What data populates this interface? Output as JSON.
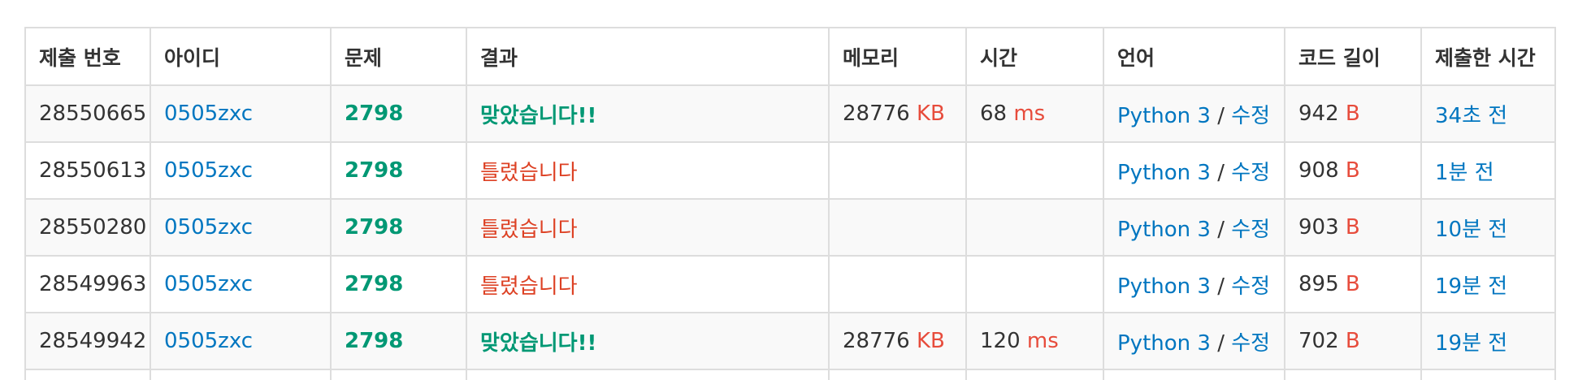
{
  "headers": {
    "submission_id": "제출 번호",
    "user_id": "아이디",
    "problem": "문제",
    "result": "결과",
    "memory": "메모리",
    "time": "시간",
    "language": "언어",
    "code_length": "코드 길이",
    "submitted_at": "제출한 시간"
  },
  "units": {
    "memory": "KB",
    "time": "ms",
    "code_length": "B"
  },
  "edit_label": "수정",
  "language_separator": "/",
  "colors": {
    "link_blue": "#0076c0",
    "accepted_green": "#009874",
    "wrong_red": "#dd4124",
    "unit_red": "#e74c3c",
    "border_gray": "#dddddd",
    "stripe_gray": "#f9f9f9"
  },
  "rows": [
    {
      "submission_id": "28550665",
      "user_id": "0505zxc",
      "problem": "2798",
      "result": "맞았습니다!!",
      "result_status": "accepted",
      "memory": "28776",
      "time": "68",
      "language": "Python 3",
      "code_length": "942",
      "submitted_at": "34초 전"
    },
    {
      "submission_id": "28550613",
      "user_id": "0505zxc",
      "problem": "2798",
      "result": "틀렸습니다",
      "result_status": "wrong",
      "memory": "",
      "time": "",
      "language": "Python 3",
      "code_length": "908",
      "submitted_at": "1분 전"
    },
    {
      "submission_id": "28550280",
      "user_id": "0505zxc",
      "problem": "2798",
      "result": "틀렸습니다",
      "result_status": "wrong",
      "memory": "",
      "time": "",
      "language": "Python 3",
      "code_length": "903",
      "submitted_at": "10분 전"
    },
    {
      "submission_id": "28549963",
      "user_id": "0505zxc",
      "problem": "2798",
      "result": "틀렸습니다",
      "result_status": "wrong",
      "memory": "",
      "time": "",
      "language": "Python 3",
      "code_length": "895",
      "submitted_at": "19분 전"
    },
    {
      "submission_id": "28549942",
      "user_id": "0505zxc",
      "problem": "2798",
      "result": "맞았습니다!!",
      "result_status": "accepted",
      "memory": "28776",
      "time": "120",
      "language": "Python 3",
      "code_length": "702",
      "submitted_at": "19분 전"
    }
  ]
}
